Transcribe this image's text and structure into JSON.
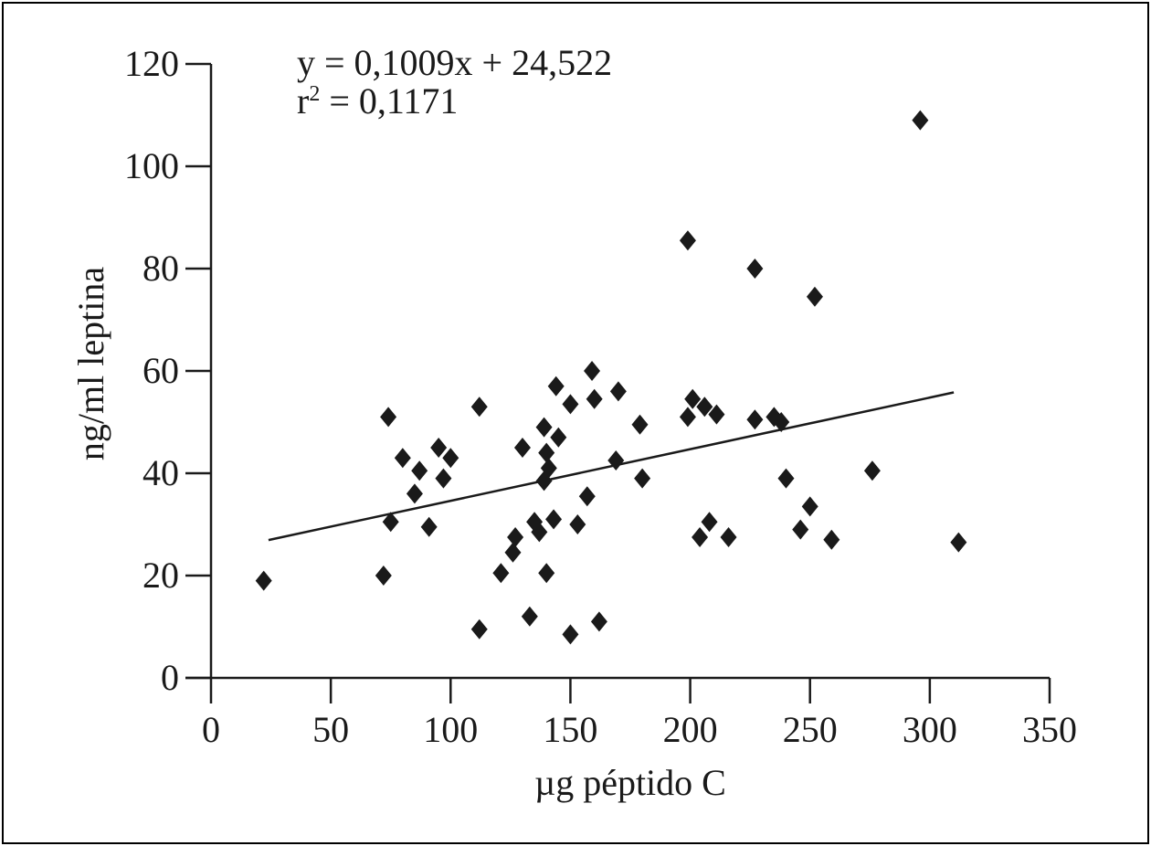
{
  "chart_data": {
    "type": "scatter",
    "xlabel": "µg péptido C",
    "ylabel": "ng/ml leptina",
    "xlim": [
      0,
      350
    ],
    "ylim": [
      0,
      120
    ],
    "x_ticks": [
      "0",
      "50",
      "100",
      "150",
      "200",
      "250",
      "300",
      "350"
    ],
    "y_ticks": [
      "0",
      "20",
      "40",
      "60",
      "80",
      "100",
      "120"
    ],
    "annotations": {
      "equation": "y = 0,1009x + 24,522",
      "r2_prefix": "r",
      "r2_sup": "2",
      "r2_value": " = 0,1171"
    },
    "trendline": {
      "slope": 0.1009,
      "intercept": 24.522,
      "x_start": 24,
      "x_end": 310
    },
    "grid": false,
    "points": [
      [
        22,
        19
      ],
      [
        72,
        20
      ],
      [
        74,
        51
      ],
      [
        75,
        30.5
      ],
      [
        80,
        43
      ],
      [
        85,
        36
      ],
      [
        87,
        40.5
      ],
      [
        91,
        29.5
      ],
      [
        95,
        45
      ],
      [
        97,
        39
      ],
      [
        100,
        43
      ],
      [
        112,
        53
      ],
      [
        112,
        9.5
      ],
      [
        121,
        20.5
      ],
      [
        126,
        24.5
      ],
      [
        127,
        27.5
      ],
      [
        130,
        45
      ],
      [
        133,
        12
      ],
      [
        135,
        30.5
      ],
      [
        137,
        28.5
      ],
      [
        139,
        49
      ],
      [
        139,
        38.5
      ],
      [
        140,
        44
      ],
      [
        140,
        20.5
      ],
      [
        141,
        41
      ],
      [
        143,
        31
      ],
      [
        144,
        57
      ],
      [
        145,
        47
      ],
      [
        150,
        8.5
      ],
      [
        150,
        53.5
      ],
      [
        153,
        30
      ],
      [
        157,
        35.5
      ],
      [
        159,
        60
      ],
      [
        160,
        54.5
      ],
      [
        162,
        11
      ],
      [
        169,
        42.5
      ],
      [
        170,
        56
      ],
      [
        179,
        49.5
      ],
      [
        180,
        39
      ],
      [
        199,
        85.5
      ],
      [
        199,
        51
      ],
      [
        201,
        54.5
      ],
      [
        204,
        27.5
      ],
      [
        206,
        53
      ],
      [
        208,
        30.5
      ],
      [
        211,
        51.5
      ],
      [
        216,
        27.5
      ],
      [
        227,
        50.5
      ],
      [
        227,
        80
      ],
      [
        235,
        51
      ],
      [
        238,
        50
      ],
      [
        240,
        39
      ],
      [
        246,
        29
      ],
      [
        250,
        33.5
      ],
      [
        252,
        74.5
      ],
      [
        259,
        27
      ],
      [
        276,
        40.5
      ],
      [
        296,
        109
      ],
      [
        312,
        26.5
      ]
    ]
  }
}
